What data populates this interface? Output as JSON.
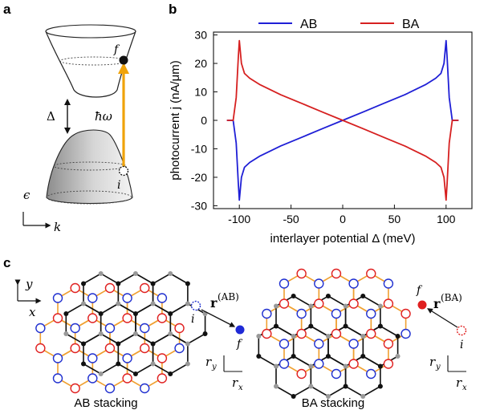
{
  "panels": {
    "a": {
      "label": "a"
    },
    "b": {
      "label": "b"
    },
    "c": {
      "label": "c"
    }
  },
  "band_diagram": {
    "final_state": "f",
    "initial_state": "i",
    "gap_symbol": "Δ",
    "photon": "ħω",
    "energy_axis": "ϵ",
    "momentum_axis": "k",
    "colors": {
      "arrow": "#f0a30a",
      "band_fill": "#c9c9c9"
    }
  },
  "chart_data": {
    "type": "line",
    "xlabel": "interlayer potential Δ (meV)",
    "ylabel": "photocurrent j (nA/μm)",
    "xlim": [
      -125,
      125
    ],
    "ylim": [
      -31,
      31
    ],
    "xticks": [
      -100,
      -50,
      0,
      50,
      100
    ],
    "xtick_labels": [
      "-100",
      "-50",
      "0",
      "50",
      "100"
    ],
    "yticks": [
      -30,
      -20,
      -10,
      0,
      10,
      20,
      30
    ],
    "ytick_labels": [
      "-30",
      "-20",
      "-10",
      "0",
      "10",
      "20",
      "30"
    ],
    "legend_position": "top",
    "grid": false,
    "series": [
      {
        "name": "AB",
        "color": "#1f1fd6",
        "x": [
          -112,
          -106,
          -103,
          -101,
          -100,
          -98,
          -95,
          -90,
          -80,
          -60,
          -40,
          -20,
          0,
          20,
          40,
          60,
          80,
          90,
          95,
          98,
          100,
          101,
          103,
          106,
          112
        ],
        "y": [
          0,
          0,
          -8,
          -22,
          -28,
          -20,
          -16.5,
          -14.8,
          -12.5,
          -9,
          -6,
          -3,
          0,
          3,
          6,
          9,
          12.5,
          14.8,
          16.5,
          20,
          28,
          22,
          8,
          0,
          0
        ]
      },
      {
        "name": "BA",
        "color": "#d62020",
        "x": [
          -112,
          -106,
          -103,
          -101,
          -100,
          -98,
          -95,
          -90,
          -80,
          -60,
          -40,
          -20,
          0,
          20,
          40,
          60,
          80,
          90,
          95,
          98,
          100,
          101,
          103,
          106,
          112
        ],
        "y": [
          0,
          0,
          8,
          22,
          28,
          20,
          16.5,
          14.8,
          12.5,
          9,
          6,
          3,
          0,
          -3,
          -6,
          -9,
          -12.5,
          -14.8,
          -16.5,
          -20,
          -28,
          -22,
          -8,
          0,
          0
        ]
      }
    ]
  },
  "lattice": {
    "axis_y": "y",
    "axis_x": "x",
    "ab": {
      "caption": "AB stacking",
      "vector": "r",
      "vector_sup": "(AB)",
      "initial": "i",
      "final": "f",
      "ry": "r",
      "ry_sub": "y",
      "rx": "r",
      "rx_sub": "x"
    },
    "ba": {
      "caption": "BA stacking",
      "vector": "r",
      "vector_sup": "(BA)",
      "initial": "i",
      "final": "f",
      "ry": "r",
      "ry_sub": "y",
      "rx": "r",
      "rx_sub": "x"
    },
    "colors": {
      "bond_orange": "#f0a030",
      "bond_black": "#111111",
      "site_red": "#e02020",
      "site_blue": "#2030d0",
      "site_gray": "#999999"
    }
  }
}
